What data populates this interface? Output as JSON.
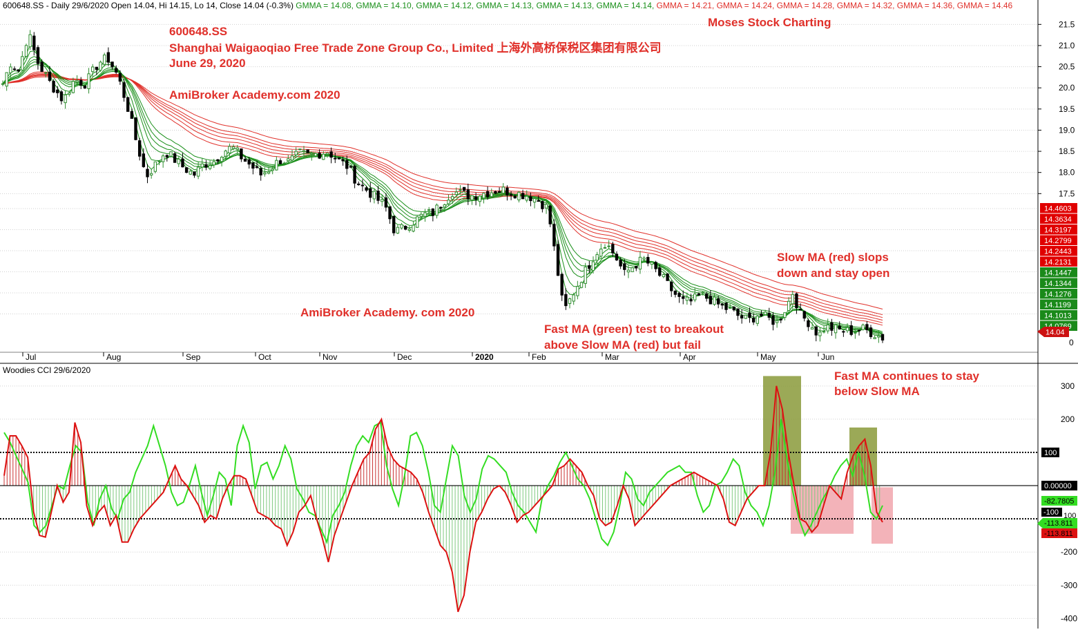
{
  "header": {
    "symbol_line": "600648.SS - Daily 29/6/2020 Open 14.04, Hi 14.15, Lo 14, Close 14.04 (-0.3%)",
    "gmma_items": [
      {
        "label": "GMMA = 14.08,",
        "color": "#1a8f1a"
      },
      {
        "label": "GMMA = 14.10,",
        "color": "#1a8f1a"
      },
      {
        "label": "GMMA = 14.12,",
        "color": "#1a8f1a"
      },
      {
        "label": "GMMA = 14.13,",
        "color": "#1a8f1a"
      },
      {
        "label": "GMMA = 14.13,",
        "color": "#1a8f1a"
      },
      {
        "label": "GMMA = 14.14,",
        "color": "#1a8f1a"
      },
      {
        "label": "GMMA = 14.21,",
        "color": "#e0302a"
      },
      {
        "label": "GMMA = 14.24,",
        "color": "#e0302a"
      },
      {
        "label": "GMMA = 14.28,",
        "color": "#e0302a"
      },
      {
        "label": "GMMA = 14.32,",
        "color": "#e0302a"
      },
      {
        "label": "GMMA = 14.36,",
        "color": "#e0302a"
      },
      {
        "label": "GMMA = 14.46",
        "color": "#e0302a"
      }
    ]
  },
  "annotations": {
    "ticker": "600648.SS",
    "company": "Shanghai Waigaoqiao Free Trade Zone Group Co., Limited 上海外高桥保税区集团有限公司",
    "date": "June 29, 2020",
    "academy1": "AmiBroker Academy.com 2020",
    "academy2": "AmiBroker Academy. com  2020",
    "brand": "Moses Stock Charting",
    "slow_ma_1": "Slow MA (red) slops",
    "slow_ma_2": "down and stay open",
    "fast_ma_1": "Fast MA (green) test to breakout",
    "fast_ma_2": "above Slow MA (red) but fail",
    "cci_note_1": "Fast MA continues to stay",
    "cci_note_2": "below Slow MA",
    "cci_title": "Woodies CCI  29/6/2020"
  },
  "colors": {
    "up": "#2e8b2e",
    "down": "#000000",
    "slow_ma": "#e0302a",
    "fast_ma": "#1a8f1a",
    "cci_fast": "#33dd22",
    "cci_slow": "#dd1111",
    "olive_box": "#8a9a3a",
    "pink_box": "#f0a0a8"
  },
  "chart_data": [
    {
      "type": "candlestick",
      "title": "600648.SS",
      "x_labels": [
        "Jul",
        "Aug",
        "Sep",
        "Oct",
        "Nov",
        "Dec",
        "2020",
        "Feb",
        "Mar",
        "Apr",
        "May",
        "Jun"
      ],
      "ylim": [
        13.75,
        21.75
      ],
      "yticks": [
        21.5,
        21.0,
        20.5,
        20.0,
        19.5,
        19.0,
        18.5,
        18.0,
        17.5
      ],
      "bottom_label": "0",
      "price_path": [
        [
          0,
          20.1
        ],
        [
          5,
          20.6
        ],
        [
          10,
          20.4
        ],
        [
          16,
          21.3
        ],
        [
          22,
          20.6
        ],
        [
          30,
          20.1
        ],
        [
          38,
          19.7
        ],
        [
          45,
          20.2
        ],
        [
          52,
          20.1
        ],
        [
          60,
          20.6
        ],
        [
          66,
          20.7
        ],
        [
          72,
          20.3
        ],
        [
          78,
          19.6
        ],
        [
          84,
          18.7
        ],
        [
          90,
          17.9
        ],
        [
          96,
          18.2
        ],
        [
          102,
          18.5
        ],
        [
          108,
          18.3
        ],
        [
          114,
          18.1
        ],
        [
          120,
          17.95
        ],
        [
          126,
          18.2
        ],
        [
          132,
          18.25
        ],
        [
          138,
          18.5
        ],
        [
          144,
          18.6
        ],
        [
          150,
          18.35
        ],
        [
          156,
          18.15
        ],
        [
          162,
          17.95
        ],
        [
          168,
          18.1
        ],
        [
          174,
          18.3
        ],
        [
          180,
          18.25
        ],
        [
          186,
          18.45
        ],
        [
          192,
          18.4
        ],
        [
          198,
          18.45
        ],
        [
          204,
          18.5
        ],
        [
          210,
          18.3
        ],
        [
          216,
          18.15
        ],
        [
          222,
          17.8
        ],
        [
          228,
          17.6
        ],
        [
          234,
          17.4
        ],
        [
          240,
          17.2
        ],
        [
          246,
          16.6
        ],
        [
          252,
          16.7
        ],
        [
          258,
          16.85
        ],
        [
          264,
          17.0
        ],
        [
          270,
          17.05
        ],
        [
          276,
          17.3
        ],
        [
          282,
          17.55
        ],
        [
          288,
          17.5
        ],
        [
          294,
          17.45
        ],
        [
          300,
          17.5
        ],
        [
          306,
          17.55
        ],
        [
          312,
          17.6
        ],
        [
          318,
          17.55
        ],
        [
          324,
          17.5
        ],
        [
          330,
          17.45
        ],
        [
          336,
          17.35
        ],
        [
          342,
          17.15
        ],
        [
          348,
          15.7
        ],
        [
          352,
          14.7
        ],
        [
          356,
          15.0
        ],
        [
          360,
          15.3
        ],
        [
          366,
          15.7
        ],
        [
          372,
          16.1
        ],
        [
          378,
          16.35
        ],
        [
          384,
          16.05
        ],
        [
          390,
          15.6
        ],
        [
          396,
          15.8
        ],
        [
          402,
          15.95
        ],
        [
          408,
          15.75
        ],
        [
          414,
          15.5
        ],
        [
          420,
          15.2
        ],
        [
          426,
          14.95
        ],
        [
          432,
          14.95
        ],
        [
          438,
          15.1
        ],
        [
          444,
          15.0
        ],
        [
          450,
          14.85
        ],
        [
          456,
          14.75
        ],
        [
          462,
          14.6
        ],
        [
          468,
          14.5
        ],
        [
          474,
          14.65
        ],
        [
          480,
          14.55
        ],
        [
          486,
          14.45
        ],
        [
          492,
          14.85
        ],
        [
          496,
          15.2
        ],
        [
          500,
          14.65
        ],
        [
          506,
          14.45
        ],
        [
          512,
          14.15
        ],
        [
          516,
          14.35
        ],
        [
          522,
          14.3
        ],
        [
          528,
          14.25
        ],
        [
          534,
          14.25
        ],
        [
          540,
          14.3
        ],
        [
          546,
          14.2
        ],
        [
          552,
          14.1
        ]
      ],
      "slow_ma_last": [
        14.4603,
        14.3634,
        14.3197,
        14.2799,
        14.2443,
        14.2131
      ],
      "fast_ma_last": [
        14.1447,
        14.1344,
        14.1276,
        14.1199,
        14.1013,
        14.0769
      ],
      "last_price": 14.04
    },
    {
      "type": "line",
      "title": "Woodies CCI  29/6/2020",
      "ylim": [
        -420,
        360
      ],
      "yticks": [
        300,
        200,
        100,
        0,
        -100,
        -200,
        -300,
        -400
      ],
      "reference_lines": [
        100,
        0,
        -100
      ],
      "series": [
        {
          "values": [
            30,
            150,
            150,
            120,
            85,
            -80,
            -150,
            -155,
            -80,
            0,
            -50,
            -20,
            190,
            130,
            -60,
            -120,
            -80,
            -60,
            -120,
            -90,
            -170,
            -170,
            -130,
            -100,
            -80,
            -60,
            -40,
            -20,
            20,
            60,
            20,
            0,
            -30,
            -60,
            -110,
            -90,
            -100,
            -40,
            0,
            30,
            30,
            20,
            -30,
            -80,
            -90,
            -100,
            -120,
            -130,
            -180,
            -140,
            -80,
            -60,
            -30,
            -100,
            -160,
            -230,
            -150,
            -100,
            -50,
            0,
            40,
            80,
            100,
            170,
            200,
            120,
            80,
            60,
            50,
            40,
            20,
            -20,
            -80,
            -130,
            -180,
            -200,
            -260,
            -380,
            -330,
            -200,
            -110,
            -80,
            -40,
            -10,
            0,
            -20,
            -60,
            -110,
            -90,
            -80,
            -60,
            -40,
            -20,
            0,
            50,
            60,
            80,
            60,
            40,
            0,
            -30,
            -100,
            -120,
            -110,
            -60,
            0,
            -40,
            -120,
            -100,
            -80,
            -60,
            -40,
            -20,
            0,
            10,
            20,
            30,
            40,
            30,
            20,
            10,
            0,
            -40,
            -110,
            -120,
            -80,
            -40,
            -20,
            0,
            0,
            100,
            300,
            230,
            100,
            0,
            -100,
            -110,
            -140,
            -120,
            -60,
            0,
            -20,
            -40,
            40,
            90,
            120,
            140,
            60,
            -80,
            -110
          ]
        },
        {
          "values": [
            160,
            130,
            90,
            50,
            10,
            -120,
            -140,
            -120,
            -60,
            0,
            -10,
            60,
            120,
            100,
            -50,
            -120,
            -40,
            0,
            -70,
            -100,
            -40,
            -20,
            40,
            80,
            120,
            180,
            120,
            60,
            -20,
            -60,
            -50,
            0,
            60,
            -20,
            -90,
            -30,
            40,
            20,
            -60,
            120,
            180,
            130,
            -10,
            60,
            70,
            20,
            60,
            120,
            80,
            -10,
            -40,
            -80,
            -90,
            -130,
            -170,
            -90,
            -60,
            -20,
            60,
            120,
            150,
            130,
            180,
            190,
            60,
            -10,
            -60,
            30,
            150,
            160,
            120,
            40,
            -60,
            -80,
            20,
            120,
            90,
            -30,
            -80,
            -40,
            50,
            90,
            80,
            60,
            40,
            -20,
            -60,
            -80,
            -110,
            -140,
            -40,
            0,
            30,
            70,
            100,
            60,
            20,
            0,
            -40,
            -100,
            -160,
            -180,
            -140,
            -60,
            40,
            20,
            -40,
            -60,
            -20,
            0,
            20,
            40,
            50,
            60,
            40,
            40,
            -30,
            -80,
            -60,
            0,
            10,
            40,
            80,
            60,
            -20,
            -60,
            -80,
            -120,
            -60,
            40,
            200,
            80,
            -20,
            -100,
            -150,
            -120,
            -80,
            -40,
            -10,
            30,
            60,
            80,
            30,
            100,
            30,
            -80,
            -100,
            -60
          ]
        }
      ],
      "highlight_boxes": [
        {
          "x": [
            1105,
            1160
          ],
          "y": [
            330,
            0
          ],
          "color": "olive"
        },
        {
          "x": [
            1145,
            1236
          ],
          "y": [
            0,
            -145
          ],
          "color": "pink"
        },
        {
          "x": [
            1230,
            1270
          ],
          "y": [
            175,
            0
          ],
          "color": "olive"
        },
        {
          "x": [
            1262,
            1293
          ],
          "y": [
            -5,
            -175
          ],
          "color": "pink"
        }
      ],
      "axis_labels": {
        "ref_100": "100",
        "ref_0": "0.00000",
        "ref_neg100": "-100",
        "last_fast": "-82.7805",
        "last_slow": "-113.811",
        "last_slow2": "-113.811"
      }
    }
  ]
}
